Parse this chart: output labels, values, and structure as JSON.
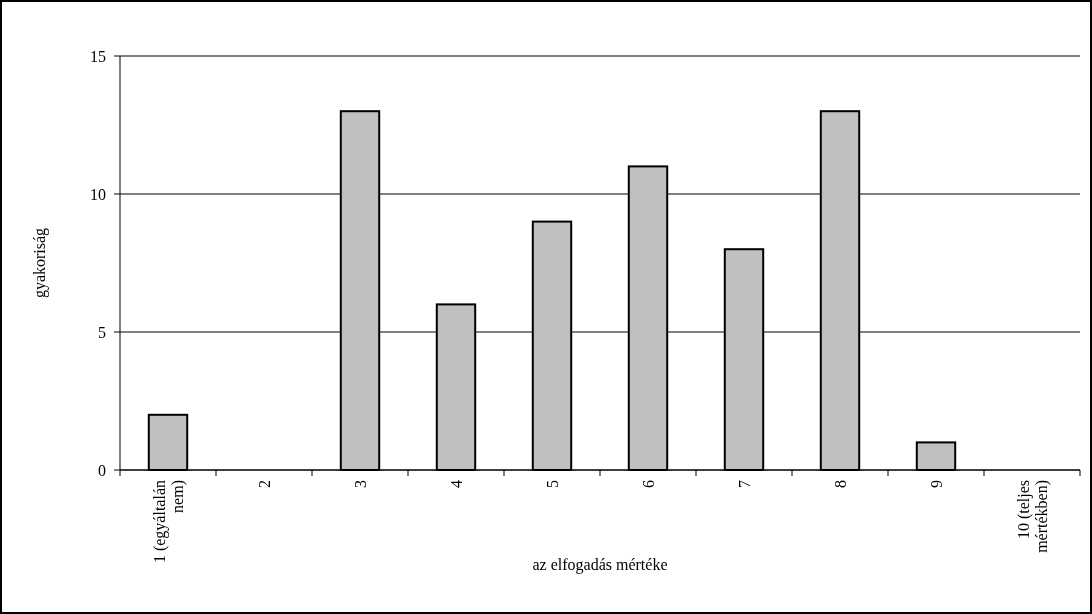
{
  "chart_data": {
    "type": "bar",
    "xlabel": "az elfogadás mértéke",
    "ylabel": "gyakoriság",
    "categories": [
      "1 (egyáltalán nem)",
      "2",
      "3",
      "4",
      "5",
      "6",
      "7",
      "8",
      "9",
      "10 (teljes mértékben)"
    ],
    "values": [
      2,
      0,
      13,
      6,
      9,
      11,
      8,
      13,
      1,
      0
    ],
    "color": "#c0c0c0",
    "ylim": [
      0,
      15
    ],
    "yticks": [
      0,
      5,
      10,
      15
    ],
    "grid": "y"
  }
}
